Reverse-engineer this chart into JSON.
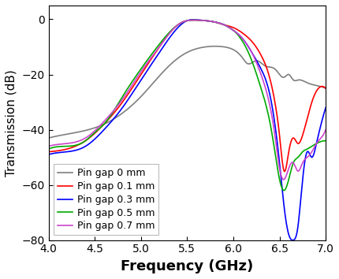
{
  "title": "",
  "xlabel": "Frequency (GHz)",
  "ylabel": "Transmission (dB)",
  "xlim": [
    4.0,
    7.0
  ],
  "ylim": [
    -80,
    5
  ],
  "yticks": [
    0,
    -20,
    -40,
    -60,
    -80
  ],
  "xticks": [
    4.0,
    4.5,
    5.0,
    5.5,
    6.0,
    6.5,
    7.0
  ],
  "legend_labels": [
    "Pin gap 0 mm",
    "Pin gap 0.1 mm",
    "Pin gap 0.3 mm",
    "Pin gap 0.5 mm",
    "Pin gap 0.7 mm"
  ],
  "colors": [
    "#7f7f7f",
    "#ff0000",
    "#0000ff",
    "#00aa00",
    "#cc44cc"
  ],
  "background_color": "#ffffff",
  "xlabel_fontsize": 13,
  "ylabel_fontsize": 11,
  "tick_fontsize": 10,
  "legend_fontsize": 9,
  "gray_pts": {
    "x": [
      4.0,
      4.3,
      4.6,
      5.0,
      5.3,
      5.5,
      5.7,
      5.9,
      6.0,
      6.1,
      6.15,
      6.25,
      6.35,
      6.45,
      6.5,
      6.55,
      6.6,
      6.65,
      6.7,
      6.8,
      6.9,
      7.0
    ],
    "y": [
      -43,
      -41,
      -38,
      -28,
      -17,
      -12,
      -10,
      -10,
      -11,
      -14,
      -16,
      -15,
      -17,
      -18,
      -20,
      -21,
      -20,
      -22,
      -22,
      -23,
      -24,
      -25
    ]
  },
  "red_pts": {
    "x": [
      4.0,
      4.2,
      4.4,
      4.6,
      4.8,
      5.0,
      5.2,
      5.4,
      5.5,
      5.6,
      5.7,
      5.8,
      5.9,
      6.0,
      6.1,
      6.2,
      6.3,
      6.4,
      6.45,
      6.5,
      6.55,
      6.6,
      6.65,
      6.7,
      6.75,
      6.8,
      6.85,
      6.9,
      7.0
    ],
    "y": [
      -48,
      -47,
      -44,
      -38,
      -30,
      -20,
      -10,
      -2,
      -0.5,
      -0.3,
      -0.5,
      -1,
      -2,
      -3,
      -5,
      -8,
      -13,
      -22,
      -30,
      -42,
      -55,
      -48,
      -43,
      -45,
      -42,
      -36,
      -30,
      -26,
      -25
    ]
  },
  "blue_pts": {
    "x": [
      4.0,
      4.2,
      4.4,
      4.6,
      4.8,
      5.0,
      5.2,
      5.4,
      5.5,
      5.6,
      5.7,
      5.8,
      5.9,
      6.0,
      6.1,
      6.2,
      6.3,
      6.4,
      6.45,
      6.5,
      6.55,
      6.6,
      6.65,
      6.7,
      6.73,
      6.76,
      6.8,
      6.85,
      6.9,
      6.95,
      7.0
    ],
    "y": [
      -49,
      -48,
      -46,
      -40,
      -32,
      -22,
      -12,
      -3,
      -0.5,
      -0.2,
      -0.5,
      -1,
      -2,
      -4,
      -7,
      -12,
      -18,
      -28,
      -38,
      -52,
      -68,
      -78,
      -80,
      -75,
      -65,
      -55,
      -48,
      -50,
      -45,
      -38,
      -32
    ]
  },
  "green_pts": {
    "x": [
      4.0,
      4.2,
      4.4,
      4.5,
      4.6,
      4.8,
      5.0,
      5.2,
      5.4,
      5.5,
      5.6,
      5.7,
      5.8,
      5.9,
      6.0,
      6.1,
      6.2,
      6.3,
      6.4,
      6.45,
      6.5,
      6.55,
      6.6,
      6.65,
      6.7,
      6.75,
      6.8,
      6.85,
      6.9,
      7.0
    ],
    "y": [
      -47,
      -46,
      -44,
      -41,
      -38,
      -28,
      -18,
      -9,
      -2,
      -0.5,
      -0.3,
      -0.5,
      -1,
      -2,
      -4,
      -8,
      -15,
      -25,
      -38,
      -48,
      -58,
      -62,
      -58,
      -52,
      -50,
      -48,
      -47,
      -46,
      -45,
      -44
    ]
  },
  "purple_pts": {
    "x": [
      4.0,
      4.2,
      4.4,
      4.6,
      4.8,
      5.0,
      5.2,
      5.4,
      5.5,
      5.6,
      5.7,
      5.8,
      5.9,
      6.0,
      6.1,
      6.2,
      6.3,
      6.4,
      6.45,
      6.5,
      6.55,
      6.6,
      6.65,
      6.7,
      6.75,
      6.8,
      6.85,
      6.9,
      6.95,
      7.0
    ],
    "y": [
      -46,
      -45,
      -43,
      -37,
      -29,
      -19,
      -10,
      -2,
      -0.5,
      -0.3,
      -0.5,
      -1,
      -2,
      -4,
      -7,
      -12,
      -20,
      -32,
      -42,
      -54,
      -58,
      -54,
      -52,
      -55,
      -52,
      -50,
      -48,
      -45,
      -43,
      -40
    ]
  }
}
